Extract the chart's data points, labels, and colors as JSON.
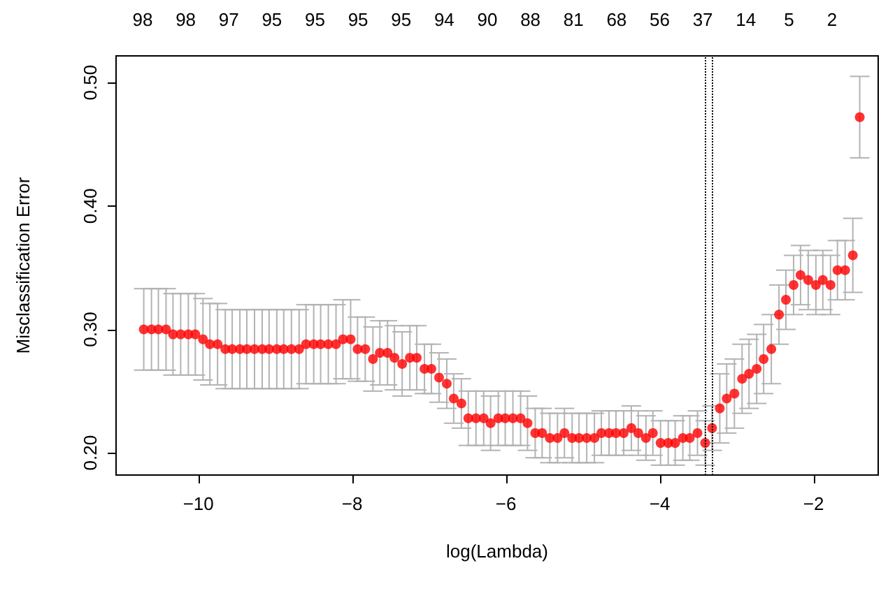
{
  "chart_data": {
    "type": "scatter",
    "xlabel": "log(Lambda)",
    "ylabel": "Misclassification Error",
    "x": [
      -10.71,
      -10.61,
      -10.52,
      -10.42,
      -10.33,
      -10.23,
      -10.13,
      -10.04,
      -9.94,
      -9.85,
      -9.75,
      -9.65,
      -9.56,
      -9.46,
      -9.37,
      -9.27,
      -9.17,
      -9.08,
      -8.98,
      -8.89,
      -8.79,
      -8.69,
      -8.6,
      -8.5,
      -8.41,
      -8.31,
      -8.21,
      -8.12,
      -8.02,
      -7.93,
      -7.83,
      -7.73,
      -7.64,
      -7.54,
      -7.45,
      -7.35,
      -7.25,
      -7.16,
      -7.06,
      -6.97,
      -6.87,
      -6.77,
      -6.68,
      -6.58,
      -6.49,
      -6.39,
      -6.29,
      -6.2,
      -6.1,
      -6.01,
      -5.91,
      -5.81,
      -5.72,
      -5.62,
      -5.53,
      -5.43,
      -5.33,
      -5.24,
      -5.14,
      -5.05,
      -4.95,
      -4.85,
      -4.76,
      -4.66,
      -4.57,
      -4.47,
      -4.37,
      -4.28,
      -4.18,
      -4.09,
      -3.99,
      -3.89,
      -3.8,
      -3.7,
      -3.61,
      -3.51,
      -3.41,
      -3.32,
      -3.22,
      -3.13,
      -3.03,
      -2.93,
      -2.84,
      -2.74,
      -2.65,
      -2.55,
      -2.45,
      -2.36,
      -2.26,
      -2.17,
      -2.07,
      -1.97,
      -1.88,
      -1.78,
      -1.69,
      -1.59,
      -1.49,
      -1.4
    ],
    "series": [
      {
        "color": "#ff0000",
        "values": [
          0.3,
          0.3,
          0.3,
          0.3,
          0.296,
          0.296,
          0.296,
          0.296,
          0.292,
          0.288,
          0.288,
          0.284,
          0.284,
          0.284,
          0.284,
          0.284,
          0.284,
          0.284,
          0.284,
          0.284,
          0.284,
          0.284,
          0.288,
          0.288,
          0.288,
          0.288,
          0.288,
          0.292,
          0.292,
          0.284,
          0.284,
          0.276,
          0.281,
          0.281,
          0.277,
          0.272,
          0.277,
          0.277,
          0.268,
          0.268,
          0.261,
          0.256,
          0.244,
          0.24,
          0.228,
          0.228,
          0.228,
          0.224,
          0.228,
          0.228,
          0.228,
          0.228,
          0.224,
          0.216,
          0.216,
          0.212,
          0.212,
          0.216,
          0.212,
          0.212,
          0.212,
          0.212,
          0.216,
          0.216,
          0.216,
          0.216,
          0.22,
          0.216,
          0.212,
          0.216,
          0.208,
          0.208,
          0.208,
          0.212,
          0.212,
          0.216,
          0.208,
          0.22,
          0.236,
          0.244,
          0.248,
          0.26,
          0.264,
          0.268,
          0.276,
          0.284,
          0.312,
          0.324,
          0.336,
          0.344,
          0.34,
          0.336,
          0.34,
          0.336,
          0.348,
          0.348,
          0.36,
          0.472
        ],
        "errors": [
          0.033,
          0.033,
          0.033,
          0.033,
          0.033,
          0.033,
          0.033,
          0.033,
          0.033,
          0.033,
          0.033,
          0.032,
          0.032,
          0.032,
          0.032,
          0.032,
          0.032,
          0.032,
          0.032,
          0.032,
          0.032,
          0.032,
          0.032,
          0.032,
          0.032,
          0.032,
          0.032,
          0.032,
          0.032,
          0.026,
          0.026,
          0.026,
          0.026,
          0.026,
          0.026,
          0.026,
          0.026,
          0.026,
          0.02,
          0.02,
          0.02,
          0.02,
          0.02,
          0.02,
          0.022,
          0.022,
          0.022,
          0.022,
          0.022,
          0.022,
          0.022,
          0.022,
          0.022,
          0.02,
          0.02,
          0.02,
          0.02,
          0.02,
          0.02,
          0.02,
          0.02,
          0.02,
          0.018,
          0.018,
          0.018,
          0.018,
          0.018,
          0.018,
          0.018,
          0.018,
          0.018,
          0.018,
          0.018,
          0.018,
          0.018,
          0.018,
          0.018,
          0.018,
          0.028,
          0.028,
          0.028,
          0.028,
          0.028,
          0.028,
          0.028,
          0.028,
          0.024,
          0.024,
          0.024,
          0.024,
          0.024,
          0.024,
          0.024,
          0.024,
          0.024,
          0.024,
          0.03,
          0.033
        ]
      }
    ],
    "xlim": [
      -11.07,
      -1.16
    ],
    "xticks": [
      -10,
      -8,
      -6,
      -4,
      -2
    ],
    "ylim": [
      0.182,
      0.5216
    ],
    "yticks": [
      {
        "value": 0.2,
        "label": "0.20"
      },
      {
        "value": 0.3,
        "label": "0.30"
      },
      {
        "value": 0.4,
        "label": "0.40"
      },
      {
        "value": 0.5,
        "label": "0.50"
      }
    ],
    "annotations": [
      "98",
      "98",
      "97",
      "95",
      "95",
      "95",
      "95",
      "94",
      "90",
      "88",
      "81",
      "68",
      "56",
      "37",
      "14",
      "5",
      "2"
    ],
    "ref_lines": [
      {
        "axis": "x",
        "value": -3.41,
        "color": "#000000",
        "line_style": "dotted"
      },
      {
        "axis": "x",
        "value": -3.32,
        "color": "#000000",
        "line_style": "dotted"
      }
    ],
    "marker": "circle",
    "grid": false
  }
}
